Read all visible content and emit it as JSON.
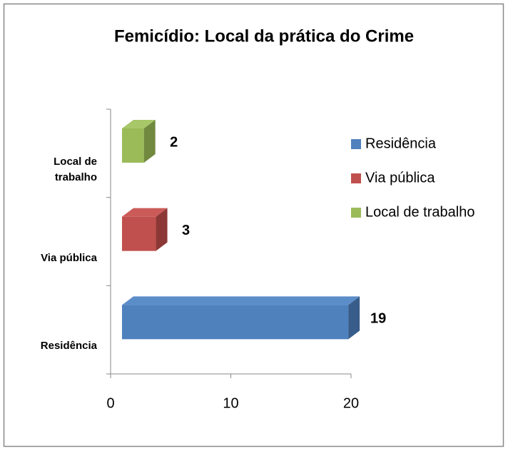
{
  "chart_data": {
    "type": "bar3d_horizontal",
    "title": "Femicídio: Local da prática do Crime",
    "categories": [
      "Residência",
      "Via pública",
      "Local de trabalho"
    ],
    "values": [
      19,
      3,
      2
    ],
    "colors": [
      "#4f81bd",
      "#c0504d",
      "#9bbb59"
    ],
    "side_colors": [
      "#385d8a",
      "#8c3836",
      "#71893f"
    ],
    "top_colors": [
      "#5b8dc9",
      "#cb5b58",
      "#a7c768"
    ],
    "xlim": [
      0,
      20
    ],
    "xticks": [
      0,
      10,
      20
    ],
    "legend": "right"
  }
}
